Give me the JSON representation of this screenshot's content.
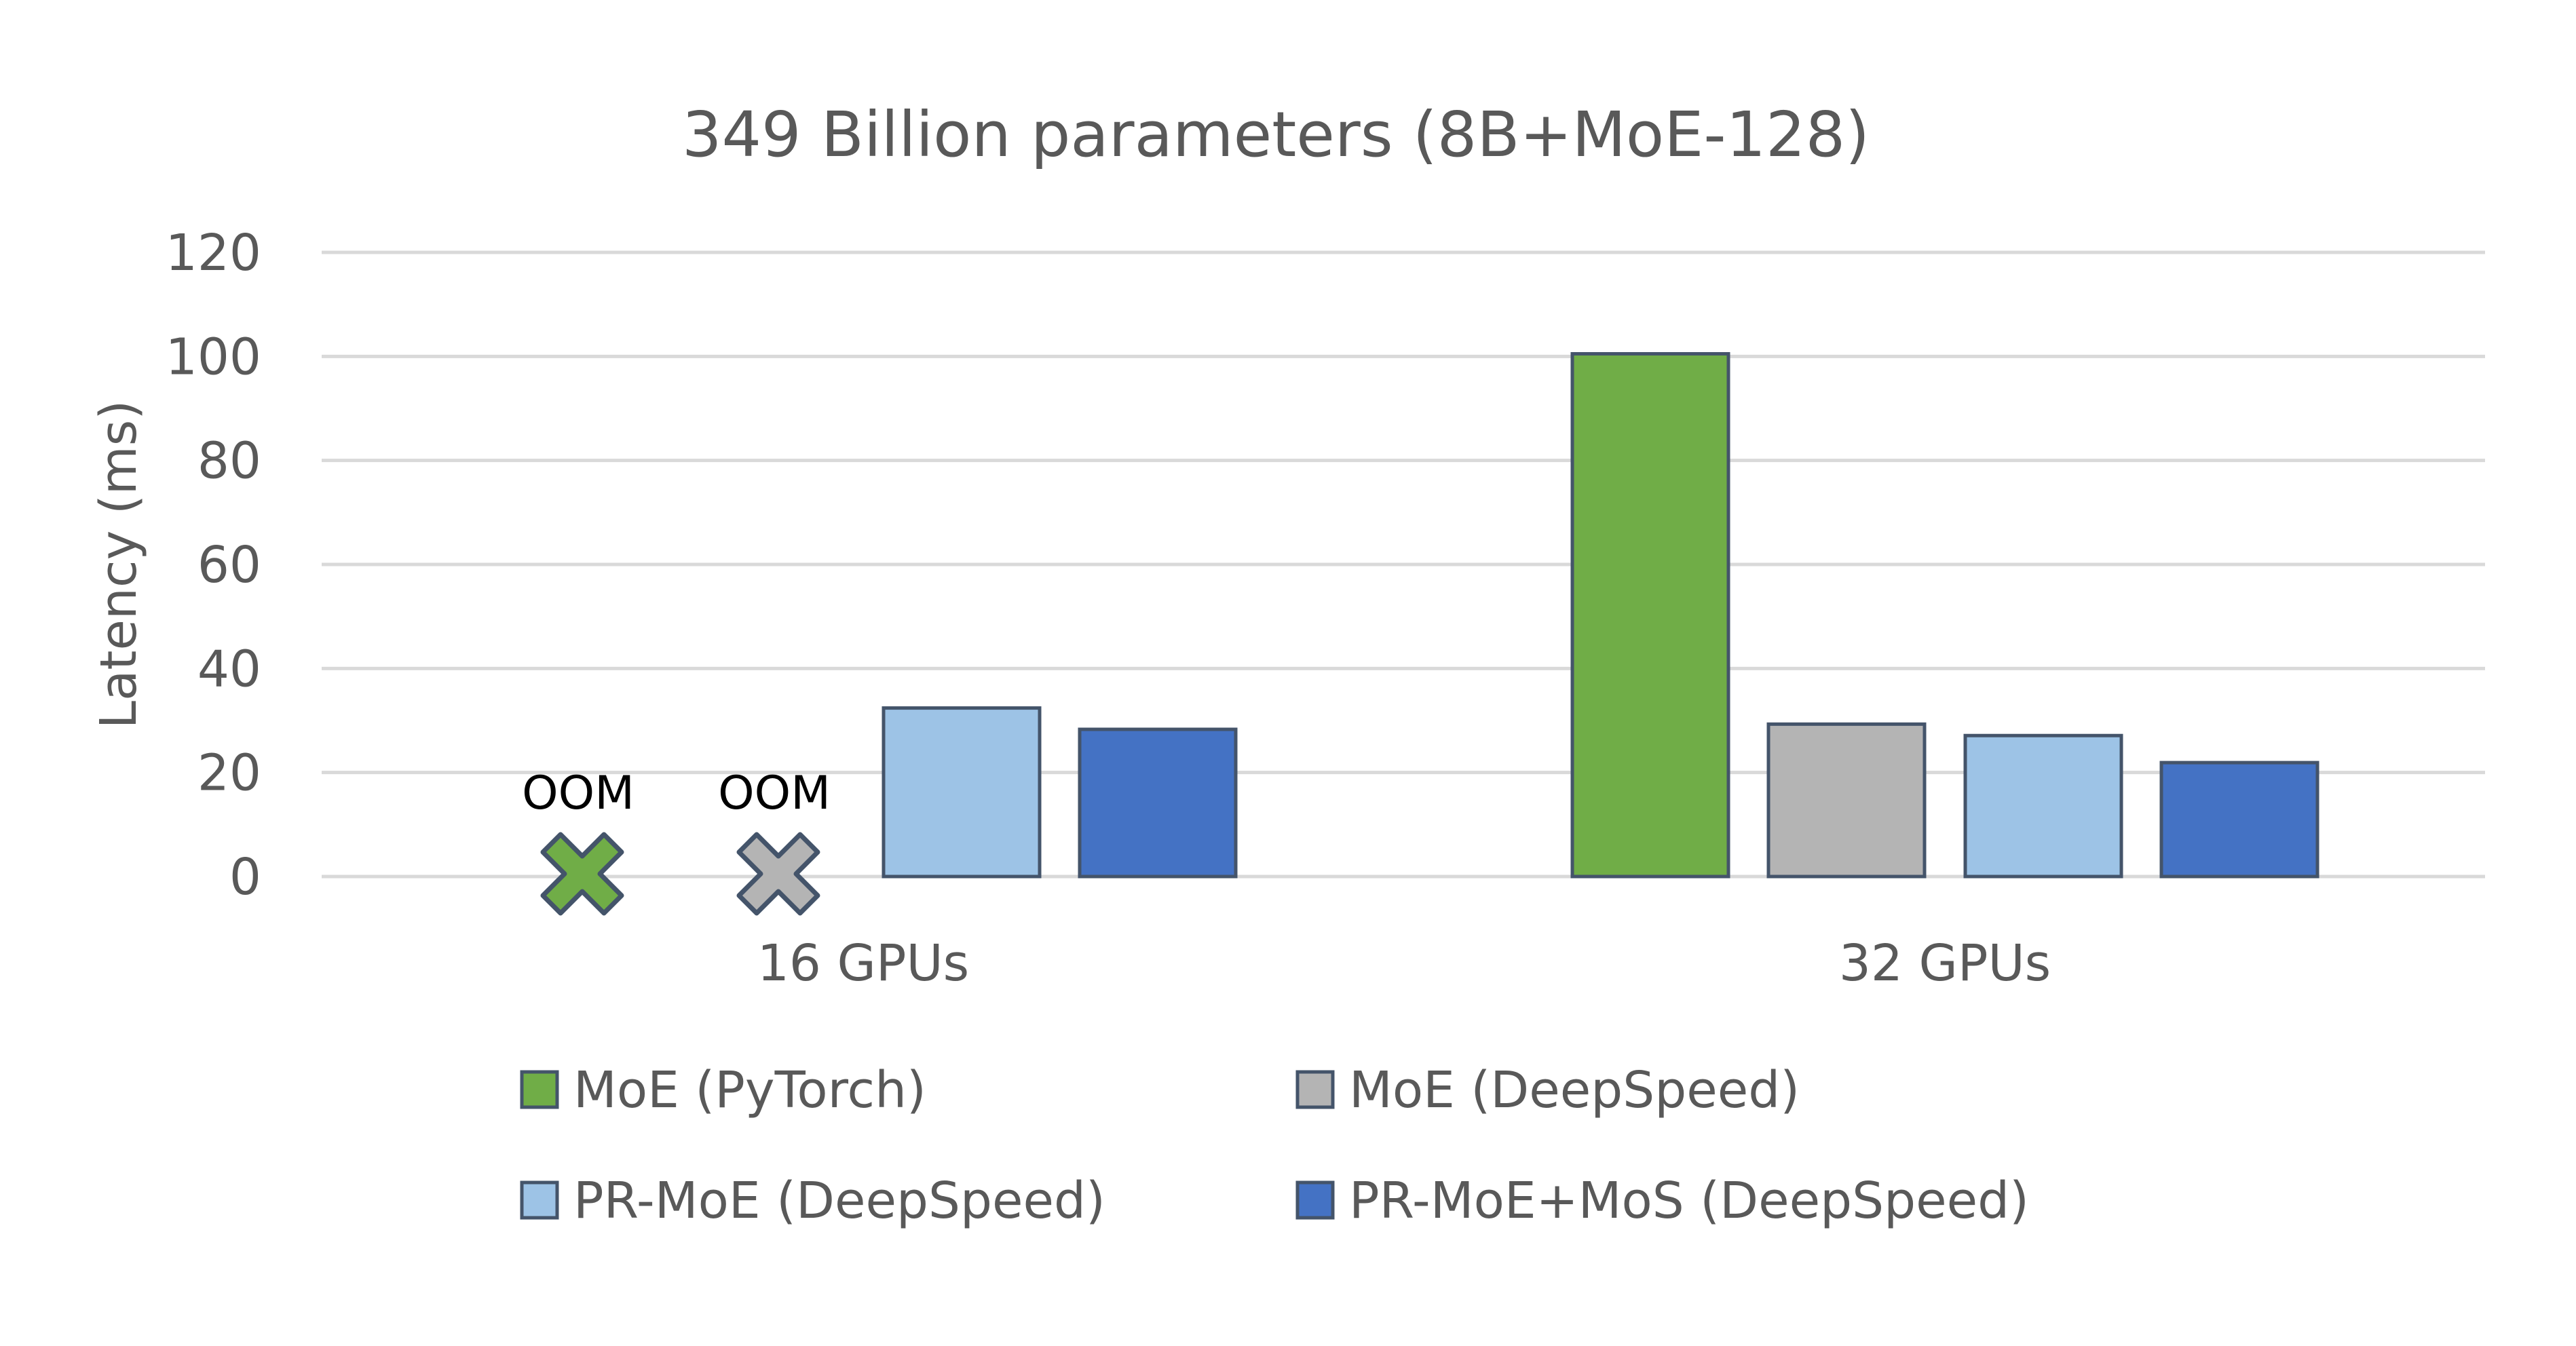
{
  "chart_data": {
    "type": "bar",
    "title": "349 Billion parameters (8B+MoE-128)",
    "xlabel": "",
    "ylabel": "Latency (ms)",
    "ylim": [
      0,
      120
    ],
    "yticks": [
      0,
      20,
      40,
      60,
      80,
      100,
      120
    ],
    "grid": true,
    "legend_position": "bottom",
    "categories": [
      "16 GPUs",
      "32 GPUs"
    ],
    "series": [
      {
        "name": "MoE (PyTorch)",
        "color": "#70AD47",
        "values": [
          null,
          100.5
        ],
        "annotations": [
          "OOM",
          null
        ]
      },
      {
        "name": "MoE (DeepSpeed)",
        "color": "#B4B4B4",
        "values": [
          null,
          29.3
        ],
        "annotations": [
          "OOM",
          null
        ]
      },
      {
        "name": "PR-MoE (DeepSpeed)",
        "color": "#9DC3E6",
        "values": [
          32.4,
          27.1
        ],
        "annotations": [
          null,
          null
        ]
      },
      {
        "name": "PR-MoE+MoS (DeepSpeed)",
        "color": "#4472C4",
        "values": [
          28.3,
          21.9
        ],
        "annotations": [
          null,
          null
        ]
      }
    ],
    "bar_outline_color": "#44546A"
  }
}
